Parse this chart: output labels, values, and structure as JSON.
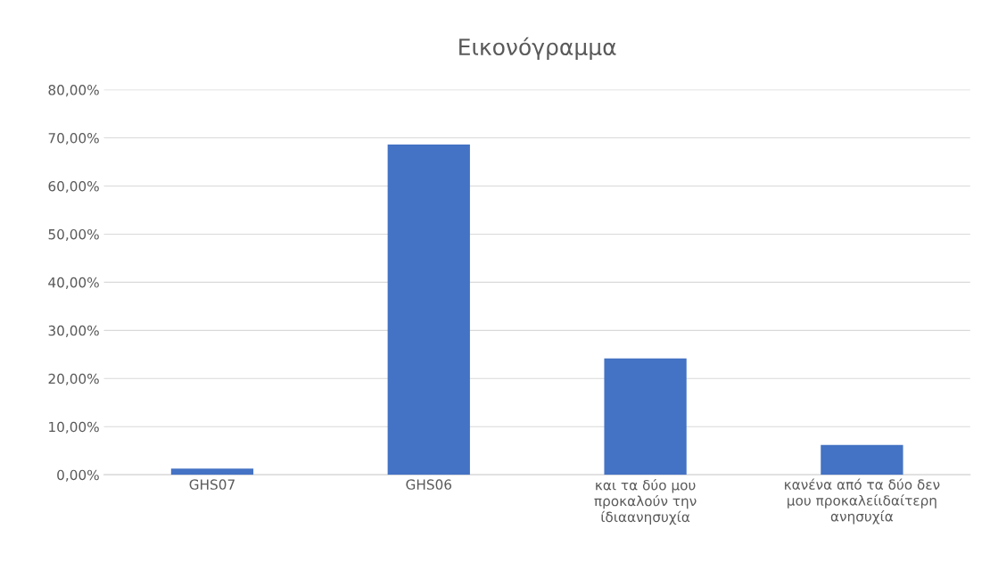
{
  "chart_data": {
    "type": "bar",
    "title": "Εικονόγραμμα",
    "categories": [
      "GHS07",
      "GHS06",
      "και τα δύο μου\nπροκαλούν την\nίδιαανησυχία",
      "κανένα από τα δύο δεν\nμου προκαλείιδαίτερη\nανησυχία"
    ],
    "values": [
      1.3,
      68.6,
      24.2,
      6.2
    ],
    "color": "#4472c4",
    "ylim": [
      0,
      80
    ],
    "yticks": [
      {
        "value": 0,
        "label": "0,00%"
      },
      {
        "value": 10,
        "label": "10,00%"
      },
      {
        "value": 20,
        "label": "20,00%"
      },
      {
        "value": 30,
        "label": "30,00%"
      },
      {
        "value": 40,
        "label": "40,00%"
      },
      {
        "value": 50,
        "label": "50,00%"
      },
      {
        "value": 60,
        "label": "60,00%"
      },
      {
        "value": 70,
        "label": "70,00%"
      },
      {
        "value": 80,
        "label": "80,00%"
      }
    ],
    "grid": "y"
  }
}
